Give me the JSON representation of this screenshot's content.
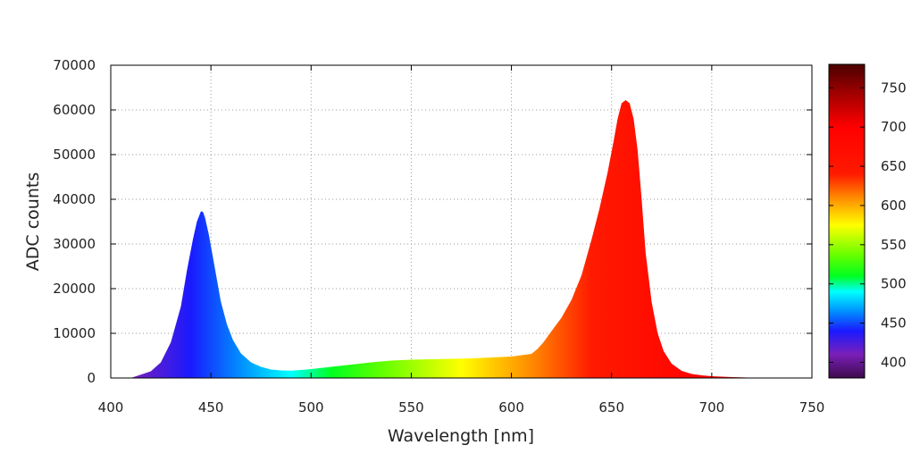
{
  "chart_data": {
    "type": "area",
    "title": "",
    "xlabel": "Wavelength [nm]",
    "ylabel": "ADC counts",
    "xlim": [
      400,
      750
    ],
    "ylim": [
      0,
      70000
    ],
    "x_ticks": [
      "400",
      "450",
      "500",
      "550",
      "600",
      "650",
      "700",
      "750"
    ],
    "y_ticks": [
      "0",
      "10000",
      "20000",
      "30000",
      "40000",
      "50000",
      "60000",
      "70000"
    ],
    "grid": true,
    "fill_coloring": "wavelength colormap",
    "series": [
      {
        "x": [
          400,
          410,
          420,
          425,
          430,
          435,
          438,
          441,
          443,
          445,
          446,
          447,
          449,
          451,
          453,
          455,
          458,
          461,
          465,
          470,
          475,
          480,
          485,
          490,
          495,
          500,
          510,
          520,
          530,
          540,
          550,
          560,
          570,
          580,
          590,
          600,
          605,
          610,
          613,
          616,
          620,
          625,
          630,
          635,
          640,
          644,
          648,
          651,
          653,
          655,
          657,
          659,
          661,
          663,
          665,
          667,
          670,
          673,
          676,
          680,
          685,
          690,
          695,
          700,
          710,
          720,
          730,
          740,
          750
        ],
        "y": [
          0,
          0,
          1500,
          3500,
          8000,
          16000,
          24000,
          31000,
          35000,
          37300,
          37200,
          36000,
          32000,
          27000,
          22000,
          17000,
          12000,
          8500,
          5500,
          3500,
          2500,
          1900,
          1700,
          1650,
          1800,
          2000,
          2500,
          3000,
          3500,
          3900,
          4100,
          4200,
          4300,
          4400,
          4600,
          4800,
          5100,
          5400,
          6500,
          8000,
          10500,
          13500,
          17500,
          23000,
          31000,
          38000,
          46000,
          53000,
          58000,
          61500,
          62200,
          61500,
          58000,
          51000,
          40000,
          28000,
          17000,
          10000,
          6000,
          3200,
          1600,
          900,
          600,
          400,
          200,
          80,
          30,
          0,
          0
        ]
      }
    ]
  },
  "colorbar": {
    "ticks": [
      "400",
      "450",
      "500",
      "550",
      "600",
      "650",
      "700",
      "750"
    ],
    "range": [
      380,
      780
    ],
    "stops": [
      {
        "nm": 380,
        "color": "#3d0a4d"
      },
      {
        "nm": 410,
        "color": "#7a1fb8"
      },
      {
        "nm": 440,
        "color": "#1a1aff"
      },
      {
        "nm": 465,
        "color": "#0090ff"
      },
      {
        "nm": 490,
        "color": "#00ffff"
      },
      {
        "nm": 510,
        "color": "#00ff20"
      },
      {
        "nm": 535,
        "color": "#60ff00"
      },
      {
        "nm": 575,
        "color": "#ffff00"
      },
      {
        "nm": 610,
        "color": "#ff8a00"
      },
      {
        "nm": 640,
        "color": "#ff1a00"
      },
      {
        "nm": 700,
        "color": "#ff0000"
      },
      {
        "nm": 740,
        "color": "#a80000"
      },
      {
        "nm": 780,
        "color": "#4a0000"
      }
    ]
  }
}
